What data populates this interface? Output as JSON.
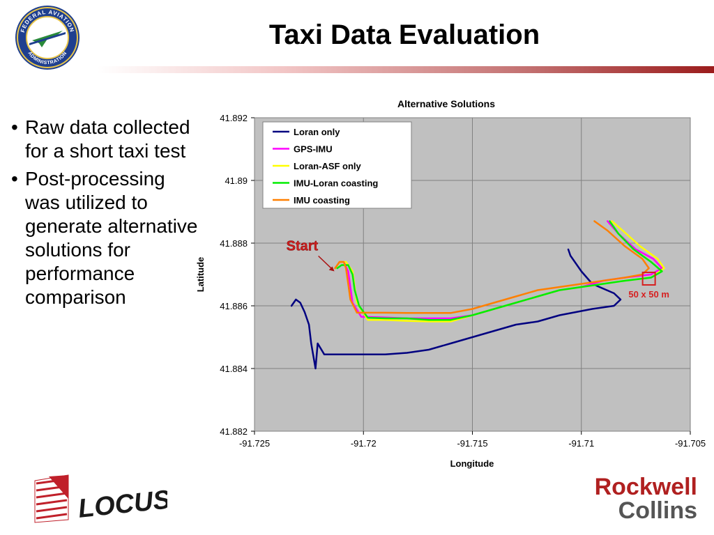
{
  "slide": {
    "title": "Taxi Data Evaluation",
    "bullets": [
      "Raw data collected for a short taxi test",
      "Post-processing was utilized to generate alternative solutions for performance comparison"
    ],
    "logos": {
      "faa_seal_icon": "faa-seal-icon",
      "faa_seal_text_top": "FEDERAL AVIATION",
      "faa_seal_text_bottom": "ADMINISTRATION",
      "locus": "LOCUS",
      "rockwell_line1": "Rockwell",
      "rockwell_line2": "Collins"
    },
    "colors": {
      "title_rule": "#9b1c1c",
      "annotation": "#d62020",
      "plot_bg": "#c0c0c0"
    }
  },
  "chart_data": {
    "type": "line",
    "title": "Alternative Solutions",
    "xlabel": "Longitude",
    "ylabel": "Latitude",
    "xlim": [
      -91.725,
      -91.705
    ],
    "ylim": [
      41.882,
      41.892
    ],
    "xticks": [
      -91.725,
      -91.72,
      -91.715,
      -91.71,
      -91.705
    ],
    "yticks": [
      41.882,
      41.884,
      41.886,
      41.888,
      41.89,
      41.892
    ],
    "xtick_labels": [
      "-91.725",
      "-91.72",
      "-91.715",
      "-91.71",
      "-91.705"
    ],
    "ytick_labels": [
      "41.882",
      "41.884",
      "41.886",
      "41.888",
      "41.89",
      "41.892"
    ],
    "grid": true,
    "legend_position": "top-left",
    "annotations": [
      {
        "text": "Start",
        "x": -91.7213,
        "y": 41.8871,
        "color": "#cc1f1f"
      },
      {
        "text": "50 x 50 m",
        "x": -91.7069,
        "y": 41.8864,
        "color": "#d62020"
      }
    ],
    "series": [
      {
        "name": "Loran only",
        "color": "#000080",
        "x": [
          -91.7233,
          -91.7231,
          -91.7229,
          -91.7227,
          -91.7225,
          -91.7224,
          -91.7222,
          -91.7221,
          -91.7218,
          -91.721,
          -91.72,
          -91.719,
          -91.718,
          -91.717,
          -91.716,
          -91.715,
          -91.714,
          -91.713,
          -91.712,
          -91.711,
          -91.7095,
          -91.7085,
          -91.7082,
          -91.7085,
          -91.7095,
          -91.71,
          -91.7105,
          -91.7106
        ],
        "y": [
          41.886,
          41.8862,
          41.8861,
          41.8858,
          41.8854,
          41.8848,
          41.884,
          41.8848,
          41.88445,
          41.88445,
          41.88445,
          41.88445,
          41.8845,
          41.8846,
          41.8848,
          41.885,
          41.8852,
          41.8854,
          41.8855,
          41.8857,
          41.8859,
          41.886,
          41.8862,
          41.8864,
          41.8867,
          41.8871,
          41.8876,
          41.8878
        ]
      },
      {
        "name": "GPS-IMU",
        "color": "#ff00ff",
        "x": [
          -91.7213,
          -91.7211,
          -91.7209,
          -91.7207,
          -91.7206,
          -91.7205,
          -91.7201,
          -91.719,
          -91.718,
          -91.717,
          -91.716,
          -91.715,
          -91.714,
          -91.713,
          -91.712,
          -91.711,
          -91.71,
          -91.709,
          -91.708,
          -91.7068,
          -91.7063,
          -91.7067,
          -91.7075,
          -91.7083,
          -91.7088
        ],
        "y": [
          41.8872,
          41.8874,
          41.8874,
          41.8871,
          41.8866,
          41.8861,
          41.88565,
          41.88563,
          41.8856,
          41.8856,
          41.8856,
          41.8857,
          41.8859,
          41.8861,
          41.8863,
          41.8865,
          41.8866,
          41.8868,
          41.8869,
          41.887,
          41.8872,
          41.8875,
          41.8878,
          41.8883,
          41.8887
        ]
      },
      {
        "name": "Loran-ASF only",
        "color": "#ffff00",
        "x": [
          -91.7213,
          -91.7211,
          -91.7208,
          -91.7205,
          -91.7204,
          -91.7203,
          -91.7198,
          -91.719,
          -91.718,
          -91.717,
          -91.716,
          -91.715,
          -91.714,
          -91.713,
          -91.712,
          -91.711,
          -91.71,
          -91.709,
          -91.708,
          -91.7068,
          -91.7062,
          -91.7065,
          -91.7073,
          -91.7081,
          -91.7086
        ],
        "y": [
          41.8872,
          41.8874,
          41.8874,
          41.8871,
          41.8866,
          41.8861,
          41.88555,
          41.88555,
          41.88552,
          41.8855,
          41.8855,
          41.8857,
          41.8859,
          41.8861,
          41.8863,
          41.8865,
          41.8866,
          41.8867,
          41.8868,
          41.8869,
          41.8872,
          41.8875,
          41.8879,
          41.8884,
          41.8887
        ]
      },
      {
        "name": "IMU-Loran coasting",
        "color": "#00ee00",
        "x": [
          -91.7212,
          -91.721,
          -91.7207,
          -91.7205,
          -91.7204,
          -91.7202,
          -91.7198,
          -91.719,
          -91.718,
          -91.717,
          -91.716,
          -91.715,
          -91.714,
          -91.713,
          -91.712,
          -91.711,
          -91.71,
          -91.709,
          -91.708,
          -91.7068,
          -91.7063,
          -91.7068,
          -91.7076,
          -91.7083,
          -91.7087
        ],
        "y": [
          41.8872,
          41.8873,
          41.8873,
          41.887,
          41.8865,
          41.886,
          41.88562,
          41.8856,
          41.8856,
          41.88555,
          41.88555,
          41.8857,
          41.8859,
          41.8861,
          41.8863,
          41.8865,
          41.8866,
          41.8867,
          41.8868,
          41.8869,
          41.8871,
          41.8874,
          41.8878,
          41.8883,
          41.8887
        ]
      },
      {
        "name": "IMU coasting",
        "color": "#ff7f00",
        "x": [
          -91.7213,
          -91.7211,
          -91.7209,
          -91.7208,
          -91.7207,
          -91.7206,
          -91.7203,
          -91.719,
          -91.718,
          -91.717,
          -91.716,
          -91.715,
          -91.714,
          -91.713,
          -91.712,
          -91.711,
          -91.71,
          -91.709,
          -91.708,
          -91.7072,
          -91.7069,
          -91.7072,
          -91.708,
          -91.7088,
          -91.7094
        ],
        "y": [
          41.8872,
          41.8874,
          41.8874,
          41.8872,
          41.8867,
          41.8862,
          41.88578,
          41.88578,
          41.88577,
          41.88577,
          41.88577,
          41.8859,
          41.8861,
          41.8863,
          41.8865,
          41.8866,
          41.8867,
          41.8868,
          41.8869,
          41.887,
          41.8872,
          41.8875,
          41.8879,
          41.8884,
          41.8887
        ]
      }
    ]
  }
}
